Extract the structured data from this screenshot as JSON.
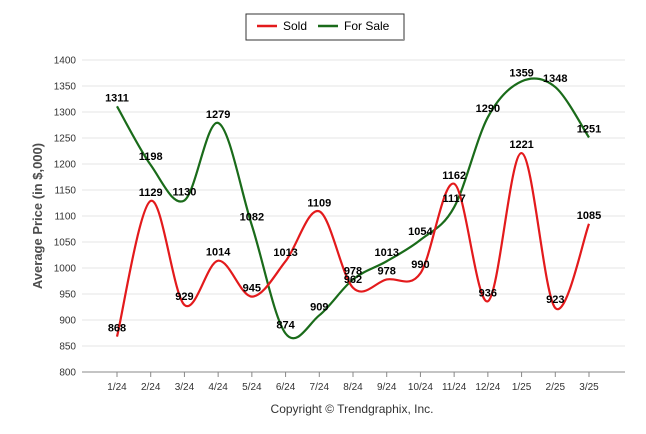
{
  "chart_data": {
    "type": "line",
    "categories": [
      "1/24",
      "2/24",
      "3/24",
      "4/24",
      "5/24",
      "6/24",
      "7/24",
      "8/24",
      "9/24",
      "10/24",
      "11/24",
      "12/24",
      "1/25",
      "2/25",
      "3/25"
    ],
    "series": [
      {
        "name": "Sold",
        "color": "#e31a1c",
        "values": [
          868,
          1129,
          929,
          1014,
          945,
          1013,
          1109,
          962,
          978,
          990,
          1162,
          936,
          1221,
          923,
          1085
        ]
      },
      {
        "name": "For Sale",
        "color": "#1a6b1a",
        "values": [
          1311,
          1198,
          1130,
          1279,
          1082,
          874,
          909,
          978,
          1013,
          1054,
          1117,
          1290,
          1359,
          1348,
          1251
        ]
      }
    ],
    "ylabel": "Average Price (in $,000)",
    "xlabel": "",
    "ylim": [
      800,
      1400
    ],
    "yticks": [
      800,
      850,
      900,
      950,
      1000,
      1050,
      1100,
      1150,
      1200,
      1250,
      1300,
      1350,
      1400
    ],
    "grid": true,
    "legend": "top-center",
    "credit": "Copyright © Trendgraphix, Inc."
  }
}
